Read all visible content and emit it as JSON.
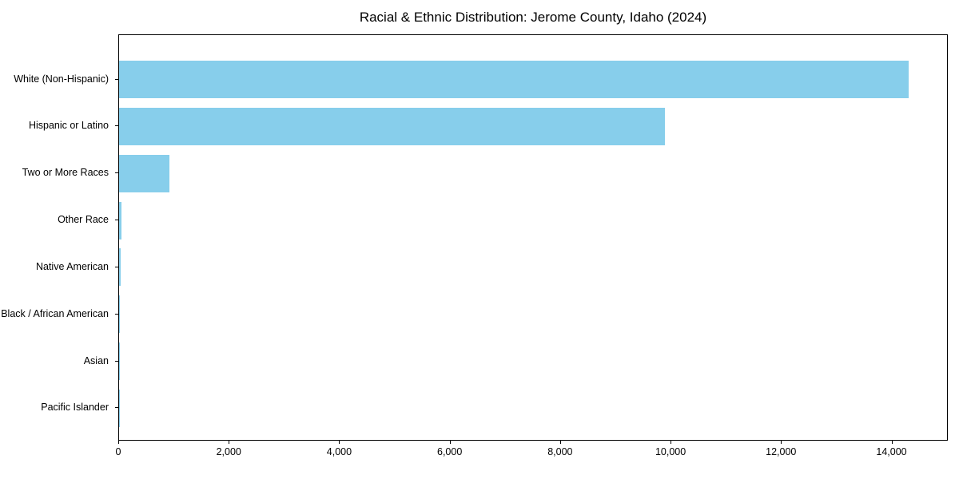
{
  "chart_data": {
    "type": "bar",
    "orientation": "horizontal",
    "title": "Racial & Ethnic Distribution: Jerome County, Idaho (2024)",
    "categories": [
      "White (Non-Hispanic)",
      "Hispanic or Latino",
      "Two or More Races",
      "Other Race",
      "Native American",
      "Black / African American",
      "Asian",
      "Pacific Islander"
    ],
    "values": [
      14300,
      9880,
      910,
      50,
      25,
      18,
      8,
      4
    ],
    "bar_color": "#87CEEB",
    "text_color": "#000000",
    "xlabel": "",
    "ylabel": "",
    "xlim": [
      0,
      15020
    ],
    "xticks": [
      0,
      2000,
      4000,
      6000,
      8000,
      10000,
      12000,
      14000
    ],
    "xtick_labels": [
      "0",
      "2,000",
      "4,000",
      "6,000",
      "8,000",
      "10,000",
      "12,000",
      "14,000"
    ],
    "grid": false,
    "legend": null
  }
}
